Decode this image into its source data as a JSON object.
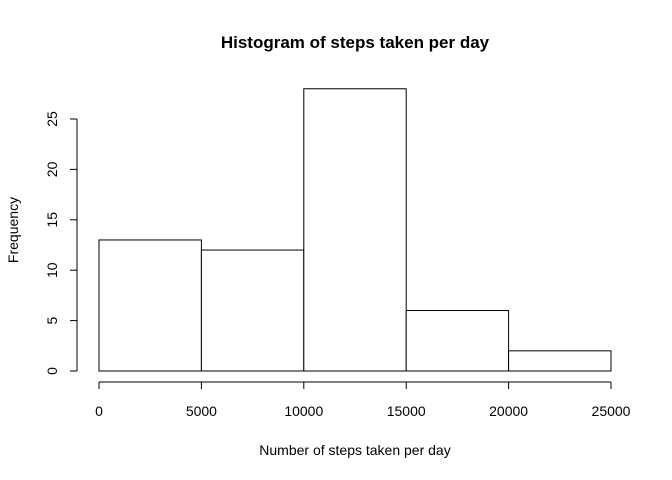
{
  "chart_data": {
    "type": "bar",
    "title": "Histogram of steps taken per day",
    "xlabel": "Number of steps taken per day",
    "ylabel": "Frequency",
    "bins": [
      {
        "start": 0,
        "end": 5000,
        "count": 13
      },
      {
        "start": 5000,
        "end": 10000,
        "count": 12
      },
      {
        "start": 10000,
        "end": 15000,
        "count": 28
      },
      {
        "start": 15000,
        "end": 20000,
        "count": 6
      },
      {
        "start": 20000,
        "end": 25000,
        "count": 2
      }
    ],
    "xlim": [
      0,
      25000
    ],
    "ylim": [
      0,
      28
    ],
    "x_ticks": [
      "0",
      "5000",
      "10000",
      "15000",
      "20000",
      "25000"
    ],
    "y_ticks": [
      "0",
      "5",
      "10",
      "15",
      "20",
      "25"
    ],
    "grid": false,
    "bar_fill": "#ffffff",
    "bar_stroke": "#000000"
  }
}
